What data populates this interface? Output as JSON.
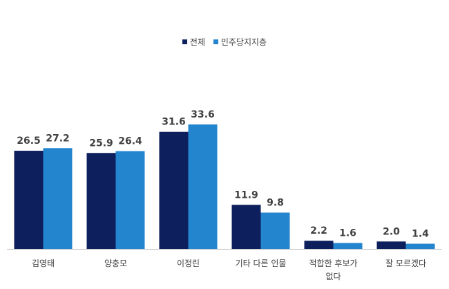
{
  "chart_data": {
    "type": "bar",
    "legend_position": "top-center",
    "categories": [
      "김영태",
      "양충모",
      "이정린",
      "기타 다른 인물",
      "적합한 후보가 없다",
      "잘 모르겠다"
    ],
    "category_lines": [
      [
        "김영태"
      ],
      [
        "양충모"
      ],
      [
        "이정린"
      ],
      [
        "기타 다른 인물"
      ],
      [
        "적합한 후보가",
        "없다"
      ],
      [
        "잘 모르겠다"
      ]
    ],
    "series": [
      {
        "name": "전체",
        "color": "#0d1f5c",
        "values": [
          26.5,
          25.9,
          31.6,
          11.9,
          2.2,
          2.0
        ]
      },
      {
        "name": "민주당지지층",
        "color": "#2485cf",
        "values": [
          27.2,
          26.4,
          33.6,
          9.8,
          1.6,
          1.4
        ]
      }
    ],
    "value_labels": [
      [
        "26.5",
        "25.9",
        "31.6",
        "11.9",
        "2.2",
        "2.0"
      ],
      [
        "27.2",
        "26.4",
        "33.6",
        "9.8",
        "1.6",
        "1.4"
      ]
    ],
    "ylim": [
      0,
      33.6
    ],
    "grid": false
  }
}
